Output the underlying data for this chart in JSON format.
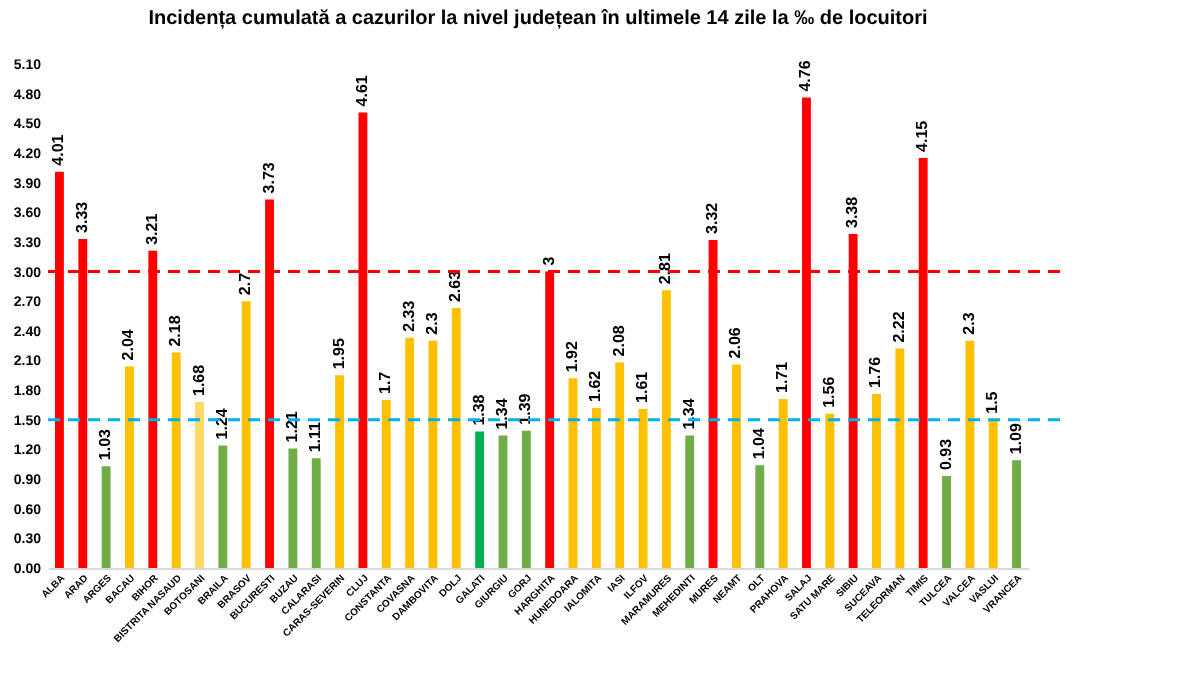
{
  "chart_data": {
    "type": "bar",
    "title": "Incidența cumulată a cazurilor la nivel județean în ultimele 14 zile la ‰ de locuitori",
    "categories": [
      "ALBA",
      "ARAD",
      "ARGES",
      "BACAU",
      "BIHOR",
      "BISTRITA NASAUD",
      "BOTOSANI",
      "BRAILA",
      "BRASOV",
      "BUCURESTI",
      "BUZAU",
      "CALARASI",
      "CARAS-SEVERIN",
      "CLUJ",
      "CONSTANTA",
      "COVASNA",
      "DAMBOVITA",
      "DOLJ",
      "GALATI",
      "GIURGIU",
      "GORJ",
      "HARGHITA",
      "HUNEDOARA",
      "IALOMITA",
      "IASI",
      "ILFOV",
      "MARAMURES",
      "MEHEDINTI",
      "MURES",
      "NEAMT",
      "OLT",
      "PRAHOVA",
      "SALAJ",
      "SATU MARE",
      "SIBIU",
      "SUCEAVA",
      "TELEORMAN",
      "TIMIS",
      "TULCEA",
      "VALCEA",
      "VASLUI",
      "VRANCEA"
    ],
    "values": [
      4.01,
      3.33,
      1.03,
      2.04,
      3.21,
      2.18,
      1.68,
      1.24,
      2.7,
      3.73,
      1.21,
      1.11,
      1.95,
      4.61,
      1.7,
      2.33,
      2.3,
      2.63,
      1.38,
      1.34,
      1.39,
      3,
      1.92,
      1.62,
      2.08,
      1.61,
      2.81,
      1.34,
      3.32,
      2.06,
      1.04,
      1.71,
      4.76,
      1.56,
      3.38,
      1.76,
      2.22,
      4.15,
      0.93,
      2.3,
      1.5,
      1.09
    ],
    "colors": [
      "#ff0000",
      "#ff0000",
      "#70ad47",
      "#ffc000",
      "#ff0000",
      "#ffc000",
      "#ffd966",
      "#70ad47",
      "#ffc000",
      "#ff0000",
      "#70ad47",
      "#70ad47",
      "#ffc000",
      "#ff0000",
      "#ffc000",
      "#ffc000",
      "#ffc000",
      "#ffc000",
      "#00b050",
      "#70ad47",
      "#70ad47",
      "#ff0000",
      "#ffc000",
      "#ffc000",
      "#ffc000",
      "#ffc000",
      "#ffc000",
      "#70ad47",
      "#ff0000",
      "#ffc000",
      "#70ad47",
      "#ffc000",
      "#ff0000",
      "#ffc000",
      "#ff0000",
      "#ffc000",
      "#ffc000",
      "#ff0000",
      "#70ad47",
      "#ffc000",
      "#ffc000",
      "#70ad47"
    ],
    "ylim": [
      0,
      5.1
    ],
    "yticks": [
      {
        "value": 0,
        "label": "0.00"
      },
      {
        "value": 0.3,
        "label": "0.30"
      },
      {
        "value": 0.6,
        "label": "0.60"
      },
      {
        "value": 0.9,
        "label": "0.90"
      },
      {
        "value": 1.2,
        "label": "1.20"
      },
      {
        "value": 1.5,
        "label": "1.50"
      },
      {
        "value": 1.8,
        "label": "1.80"
      },
      {
        "value": 2.1,
        "label": "2.10"
      },
      {
        "value": 2.4,
        "label": "2.40"
      },
      {
        "value": 2.7,
        "label": "2.70"
      },
      {
        "value": 3,
        "label": "3.00"
      },
      {
        "value": 3.3,
        "label": "3.30"
      },
      {
        "value": 3.6,
        "label": "3.60"
      },
      {
        "value": 3.9,
        "label": "3.90"
      },
      {
        "value": 4.2,
        "label": "4.20"
      },
      {
        "value": 4.5,
        "label": "4.50"
      },
      {
        "value": 4.8,
        "label": "4.80"
      },
      {
        "value": 5.1,
        "label": "5.10"
      }
    ],
    "ref_lines": [
      {
        "axis": "y",
        "value": 3,
        "color": "#ff0000",
        "line_style": "dashed"
      },
      {
        "axis": "y",
        "value": 1.5,
        "color": "#00b0f0",
        "line_style": "dashed"
      }
    ],
    "data_labels": true,
    "grid": false
  }
}
